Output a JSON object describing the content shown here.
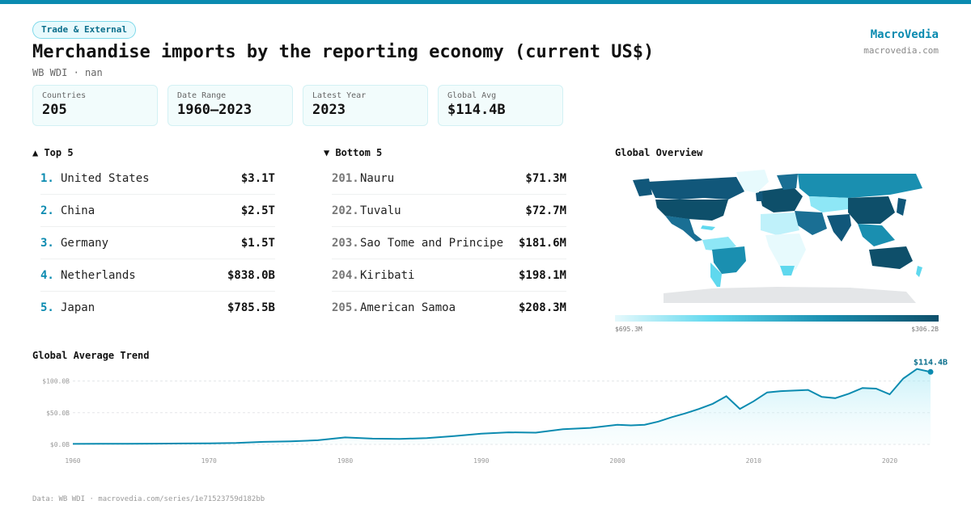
{
  "header": {
    "category": "Trade & External",
    "title": "Merchandise imports by the reporting economy (current US$)",
    "subtitle": "WB WDI · nan",
    "brand": "MacroVedia",
    "brand_url": "macrovedia.com"
  },
  "stats": [
    {
      "label": "Countries",
      "value": "205"
    },
    {
      "label": "Date Range",
      "value": "1960–2023"
    },
    {
      "label": "Latest Year",
      "value": "2023"
    },
    {
      "label": "Global Avg",
      "value": "$114.4B"
    }
  ],
  "top5": {
    "heading": "▲ Top 5",
    "items": [
      {
        "rank": "1.",
        "name": "United States",
        "value": "$3.1T"
      },
      {
        "rank": "2.",
        "name": "China",
        "value": "$2.5T"
      },
      {
        "rank": "3.",
        "name": "Germany",
        "value": "$1.5T"
      },
      {
        "rank": "4.",
        "name": "Netherlands",
        "value": "$838.0B"
      },
      {
        "rank": "5.",
        "name": "Japan",
        "value": "$785.5B"
      }
    ]
  },
  "bottom5": {
    "heading": "▼ Bottom 5",
    "items": [
      {
        "rank": "201.",
        "name": "Nauru",
        "value": "$71.3M"
      },
      {
        "rank": "202.",
        "name": "Tuvalu",
        "value": "$72.7M"
      },
      {
        "rank": "203.",
        "name": "Sao Tome and Principe",
        "value": "$181.6M"
      },
      {
        "rank": "204.",
        "name": "Kiribati",
        "value": "$198.1M"
      },
      {
        "rank": "205.",
        "name": "American Samoa",
        "value": "$208.3M"
      }
    ]
  },
  "map": {
    "heading": "Global Overview",
    "legend_min": "$695.3M",
    "legend_max": "$306.2B"
  },
  "trend": {
    "heading": "Global Average Trend",
    "end_label": "$114.4B"
  },
  "footer": "Data: WB WDI · macrovedia.com/series/1e71523759d182bb",
  "chart_data": {
    "type": "area",
    "title": "Global Average Trend",
    "xlabel": "",
    "ylabel": "",
    "x_ticks": [
      1960,
      1970,
      1980,
      1990,
      2000,
      2010,
      2020
    ],
    "y_ticks": [
      0,
      50,
      100
    ],
    "y_tick_labels": [
      "$0.0B",
      "$50.0B",
      "$100.0B"
    ],
    "ylim": [
      0,
      125
    ],
    "xlim": [
      1960,
      2023
    ],
    "grid": true,
    "colors": {
      "line": "#0b8bb0",
      "fill": "#c8f0f8"
    },
    "x": [
      1960,
      1962,
      1964,
      1966,
      1968,
      1970,
      1972,
      1974,
      1976,
      1978,
      1980,
      1982,
      1984,
      1986,
      1988,
      1990,
      1992,
      1994,
      1996,
      1998,
      2000,
      2001,
      2002,
      2003,
      2004,
      2005,
      2006,
      2007,
      2008,
      2009,
      2010,
      2011,
      2012,
      2013,
      2014,
      2015,
      2016,
      2017,
      2018,
      2019,
      2020,
      2021,
      2022,
      2023
    ],
    "series": [
      {
        "values": [
          0.8,
          0.9,
          1.0,
          1.2,
          1.4,
          1.7,
          2.2,
          4.0,
          4.8,
          6.5,
          11.0,
          9.0,
          8.5,
          10.0,
          13.0,
          17.0,
          19.0,
          18.5,
          24.0,
          26.0,
          31.0,
          30.0,
          31.0,
          36.0,
          43.0,
          49.0,
          56.0,
          64.0,
          76.0,
          56.0,
          68.0,
          82.0,
          84.0,
          85.0,
          86.0,
          75.0,
          73.0,
          80.0,
          89.0,
          88.0,
          79.0,
          104.0,
          119.0,
          114.4
        ]
      }
    ]
  }
}
